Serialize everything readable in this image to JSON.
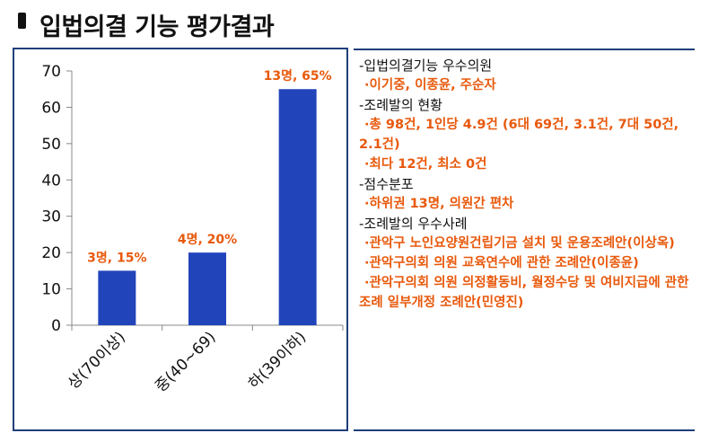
{
  "page": {
    "title": "입법의결 기능 평가결과"
  },
  "chart_data": {
    "type": "bar",
    "categories": [
      "상(70이상)",
      "중(40~69)",
      "하(39이하)"
    ],
    "values": [
      15,
      20,
      65
    ],
    "data_labels": [
      "3명, 15%",
      "4명, 20%",
      "13명, 65%"
    ],
    "ylim": [
      0,
      70
    ],
    "yticks": [
      0,
      10,
      20,
      30,
      40,
      50,
      60,
      70
    ],
    "bar_color": "#2244bb",
    "label_color": "#e8590c",
    "grid": false
  },
  "panel": {
    "sections": [
      {
        "heading": "-입법의결기능 우수의원",
        "items": [
          {
            "text": "·이기중, 이종윤, 주순자",
            "wrap": false
          }
        ]
      },
      {
        "heading": "-조례발의 현황",
        "items": [
          {
            "text": "·총 98건, 1인당 4.9건 (6대 69건, 3.1건, 7대 50건, 2.1건)",
            "wrap": true
          },
          {
            "text": "·최다 12건, 최소 0건",
            "wrap": false
          }
        ]
      },
      {
        "heading": "-점수분포",
        "items": [
          {
            "text": "·하위권 13명, 의원간 편차",
            "wrap": false
          }
        ]
      },
      {
        "heading": "-조례발의 우수사례",
        "items": [
          {
            "text": "·관악구 노인요양원건립기금 설치 및 운용조례안(이상옥)",
            "wrap": true
          },
          {
            "text": "·관악구의회 의원 교육연수에 관한 조례안(이종윤)",
            "wrap": false
          },
          {
            "text": "·관악구의회 의원 의정활동비, 월정수당 및 여비지급에 관한 조례 일부개정 조례안(민영진)",
            "wrap": true
          }
        ]
      }
    ]
  }
}
